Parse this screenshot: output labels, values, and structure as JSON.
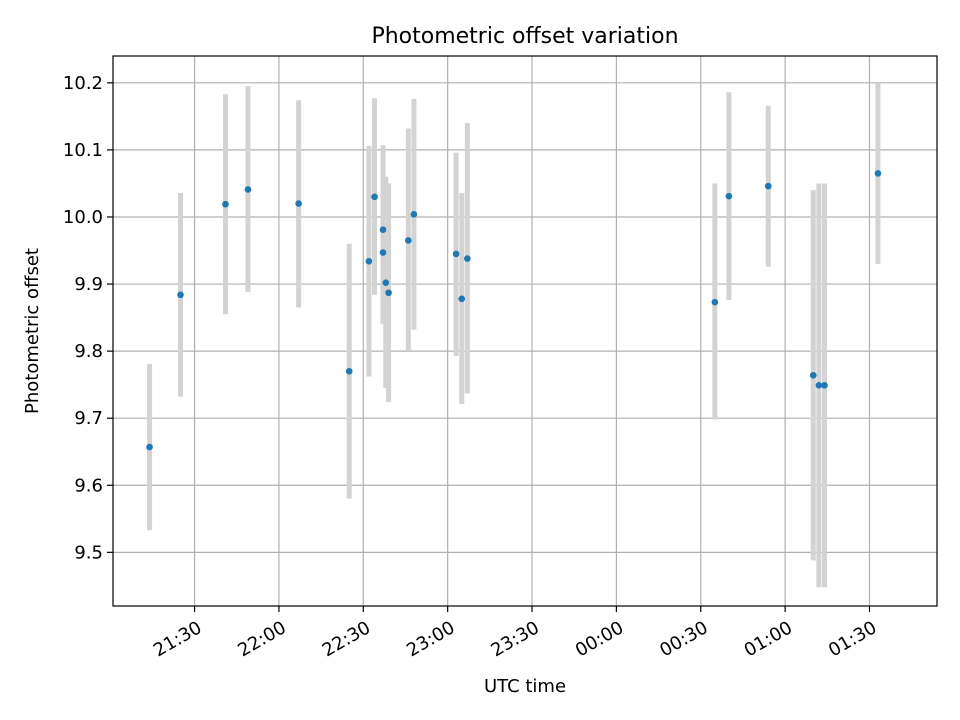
{
  "chart_data": {
    "type": "scatter",
    "title": "Photometric offset variation",
    "xlabel": "UTC time",
    "ylabel": "Photometric offset",
    "x_is_time": true,
    "x_tick_labels": [
      "21:30",
      "22:00",
      "22:30",
      "23:00",
      "23:30",
      "00:00",
      "00:30",
      "01:00",
      "01:30"
    ],
    "y_ticks": [
      9.5,
      9.6,
      9.7,
      9.8,
      9.9,
      10.0,
      10.1,
      10.2
    ],
    "y_tick_labels": [
      "9.5",
      "9.6",
      "9.7",
      "9.8",
      "9.9",
      "10.0",
      "10.1",
      "10.2"
    ],
    "xlim": [
      "21:01",
      "01:54"
    ],
    "ylim": [
      9.42,
      10.24
    ],
    "grid": true,
    "series": [
      {
        "color": "#1f77b4",
        "error_color": "#d3d3d3",
        "points": [
          {
            "t": "21:14",
            "y": 9.657,
            "lo": 9.533,
            "hi": 9.781
          },
          {
            "t": "21:25",
            "y": 9.884,
            "lo": 9.732,
            "hi": 10.036
          },
          {
            "t": "21:41",
            "y": 10.019,
            "lo": 9.855,
            "hi": 10.183
          },
          {
            "t": "21:49",
            "y": 10.041,
            "lo": 9.888,
            "hi": 10.195
          },
          {
            "t": "22:07",
            "y": 10.02,
            "lo": 9.865,
            "hi": 10.174
          },
          {
            "t": "22:25",
            "y": 9.77,
            "lo": 9.58,
            "hi": 9.96
          },
          {
            "t": "22:32",
            "y": 9.934,
            "lo": 9.762,
            "hi": 10.106
          },
          {
            "t": "22:34",
            "y": 10.03,
            "lo": 9.884,
            "hi": 10.177
          },
          {
            "t": "22:37",
            "y": 9.981,
            "lo": 9.855,
            "hi": 10.107
          },
          {
            "t": "22:37",
            "y": 9.947,
            "lo": 9.84,
            "hi": 10.06
          },
          {
            "t": "22:38",
            "y": 9.902,
            "lo": 9.745,
            "hi": 10.06
          },
          {
            "t": "22:39",
            "y": 9.887,
            "lo": 9.724,
            "hi": 10.05
          },
          {
            "t": "22:46",
            "y": 9.965,
            "lo": 9.8,
            "hi": 10.132
          },
          {
            "t": "22:48",
            "y": 10.004,
            "lo": 9.832,
            "hi": 10.176
          },
          {
            "t": "23:03",
            "y": 9.945,
            "lo": 9.793,
            "hi": 10.096
          },
          {
            "t": "23:05",
            "y": 9.878,
            "lo": 9.721,
            "hi": 10.036
          },
          {
            "t": "23:07",
            "y": 9.938,
            "lo": 9.737,
            "hi": 10.14
          },
          {
            "t": "00:35",
            "y": 9.873,
            "lo": 9.698,
            "hi": 10.05
          },
          {
            "t": "00:40",
            "y": 10.031,
            "lo": 9.876,
            "hi": 10.186
          },
          {
            "t": "00:54",
            "y": 10.046,
            "lo": 9.926,
            "hi": 10.166
          },
          {
            "t": "01:10",
            "y": 9.764,
            "lo": 9.488,
            "hi": 10.04
          },
          {
            "t": "01:12",
            "y": 9.749,
            "lo": 9.448,
            "hi": 10.05
          },
          {
            "t": "01:14",
            "y": 9.749,
            "lo": 9.448,
            "hi": 10.05
          },
          {
            "t": "01:33",
            "y": 10.065,
            "lo": 9.93,
            "hi": 10.2
          }
        ]
      }
    ]
  }
}
